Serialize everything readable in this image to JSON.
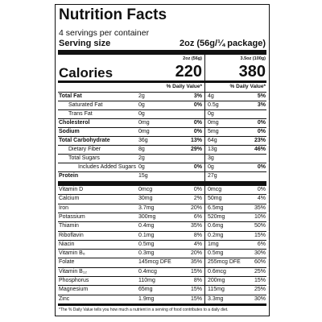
{
  "header": {
    "title": "Nutrition Facts",
    "servings": "4 servings per container",
    "serving_size_label": "Serving size",
    "serving_size": "2oz (56g/¼ package)",
    "columns": [
      "2oz (56g)",
      "3.5oz (100g)"
    ],
    "calories_label": "Calories",
    "calories": [
      "220",
      "380"
    ],
    "dv_label": "% Daily Value*"
  },
  "nutrients": [
    {
      "name": "Total Fat",
      "values": [
        "2g",
        "3%",
        "4g",
        "5%"
      ],
      "sub": [
        {
          "name": "Saturated Fat",
          "values": [
            "0g",
            "0%",
            "0.5g",
            "3%"
          ]
        },
        {
          "name": "Trans Fat",
          "values": [
            "0g",
            null,
            "0g",
            null
          ]
        }
      ]
    },
    {
      "name": "Cholesterol",
      "values": [
        "0mg",
        "0%",
        "0mg",
        "0%"
      ]
    },
    {
      "name": "Sodium",
      "values": [
        "0mg",
        "0%",
        "5mg",
        "0%"
      ]
    },
    {
      "name": "Total Carbohydrate",
      "values": [
        "36g",
        "13%",
        "64g",
        "23%"
      ],
      "sub": [
        {
          "name": "Dietary Fiber",
          "values": [
            "8g",
            "29%",
            "13g",
            "46%"
          ]
        },
        {
          "name": "Total Sugars",
          "values": [
            "2g",
            null,
            "3g",
            null
          ],
          "sub": [
            {
              "name": "Includes Added Sugars",
              "values": [
                "0g",
                "0%",
                "0g",
                "0%"
              ]
            }
          ]
        }
      ]
    },
    {
      "name": "Protein",
      "values": [
        "15g",
        null,
        "27g",
        null
      ]
    }
  ],
  "vitamins": [
    {
      "name": "Vitamin D",
      "values": [
        "0mcg",
        "0%",
        "0mcg",
        "0%"
      ]
    },
    {
      "name": "Calcium",
      "values": [
        "30mg",
        "2%",
        "50mg",
        "4%"
      ]
    },
    {
      "name": "Iron",
      "values": [
        "3.7mg",
        "20%",
        "6.5mg",
        "35%"
      ]
    },
    {
      "name": "Potassium",
      "values": [
        "300mg",
        "6%",
        "520mg",
        "10%"
      ]
    },
    {
      "name": "Thiamin",
      "values": [
        "0.4mg",
        "35%",
        "0.6mg",
        "50%"
      ]
    },
    {
      "name": "Riboflavin",
      "values": [
        "0.1mg",
        "8%",
        "0.2mg",
        "15%"
      ]
    },
    {
      "name": "Niacin",
      "values": [
        "0.5mg",
        "4%",
        "1mg",
        "6%"
      ]
    },
    {
      "name": "Vitamin B₆",
      "values": [
        "0.3mg",
        "20%",
        "0.5mg",
        "30%"
      ]
    },
    {
      "name": "Folate",
      "values": [
        "145mcg DFE",
        "35%",
        "255mcg DFE",
        "60%"
      ]
    },
    {
      "name": "Vitamin B₁₂",
      "values": [
        "0.4mcg",
        "15%",
        "0.6mcg",
        "25%"
      ]
    },
    {
      "name": "Phosphorus",
      "values": [
        "110mg",
        "8%",
        "200mg",
        "15%"
      ]
    },
    {
      "name": "Magnesium",
      "values": [
        "65mg",
        "15%",
        "115mg",
        "25%"
      ]
    },
    {
      "name": "Zinc",
      "values": [
        "1.9mg",
        "15%",
        "3.3mg",
        "30%"
      ]
    }
  ],
  "footnote": "*The % Daily Value tells you how much a nutrient in a serving of food contributes to a daily diet."
}
